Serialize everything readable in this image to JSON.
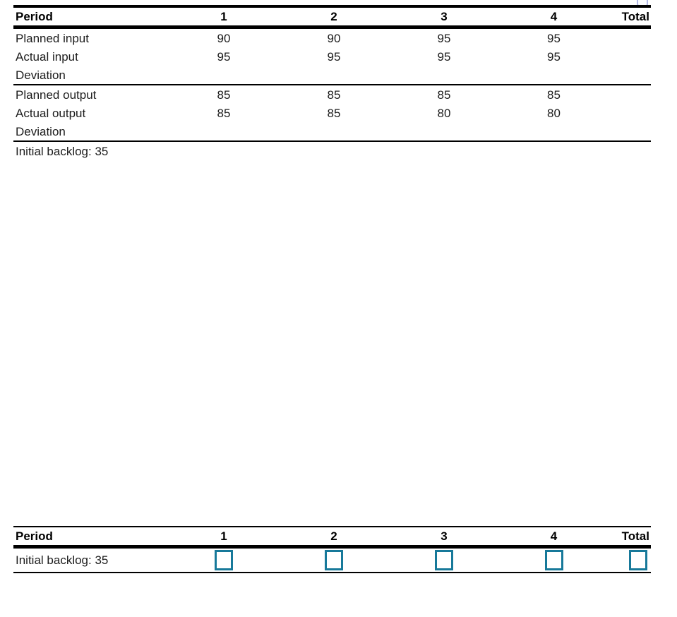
{
  "colors": {
    "text": "#1a1a1a",
    "rule_line": "#000000",
    "input_box_border": "#17799a",
    "corner_icon_border": "#b0b7e6"
  },
  "input_output_table": {
    "columns": [
      "Period",
      "1",
      "2",
      "3",
      "4",
      "Total"
    ],
    "rows": [
      {
        "label": "Planned input",
        "values": [
          "90",
          "90",
          "95",
          "95",
          ""
        ]
      },
      {
        "label": "Actual input",
        "values": [
          "95",
          "95",
          "95",
          "95",
          ""
        ]
      },
      {
        "label": "Deviation",
        "values": [
          "",
          "",
          "",
          "",
          ""
        ]
      },
      {
        "label": "Planned output",
        "values": [
          "85",
          "85",
          "85",
          "85",
          ""
        ]
      },
      {
        "label": "Actual output",
        "values": [
          "85",
          "85",
          "80",
          "80",
          ""
        ]
      },
      {
        "label": "Deviation",
        "values": [
          "",
          "",
          "",
          "",
          ""
        ]
      }
    ],
    "footer_note": "Initial backlog: 35"
  },
  "answer_table": {
    "columns": [
      "Period",
      "1",
      "2",
      "3",
      "4",
      "Total"
    ],
    "row_label": "Initial backlog: 35",
    "inputs": [
      {
        "period": "1",
        "value": ""
      },
      {
        "period": "2",
        "value": ""
      },
      {
        "period": "3",
        "value": ""
      },
      {
        "period": "4",
        "value": ""
      },
      {
        "period": "Total",
        "value": ""
      }
    ]
  }
}
